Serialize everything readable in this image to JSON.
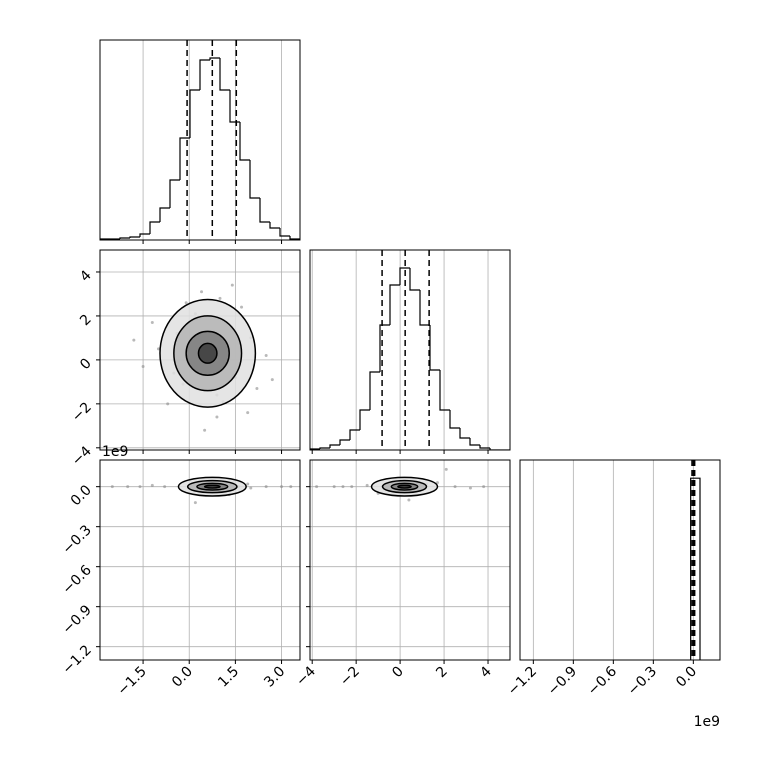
{
  "chart_data": {
    "type": "corner",
    "colors": {
      "line": "#000000",
      "points": "#8a8a8a",
      "grid": "#b0b0b0",
      "fills": [
        "#e0e0e0",
        "#b4b4b4",
        "#7c7c7c",
        "#3c3c3c"
      ]
    },
    "grid": true,
    "params": [
      {
        "lim": [
          -2.9,
          3.6
        ],
        "ticks": [
          {
            "value": -1.5,
            "label": "−1.5"
          },
          {
            "value": 0,
            "label": "0.0"
          },
          {
            "value": 1.5,
            "label": "1.5"
          },
          {
            "value": 3,
            "label": "3.0"
          }
        ],
        "quantiles": [
          -0.07,
          0.75,
          1.53
        ],
        "hist": {
          "bins": [
            -2.9,
            -2.575,
            -2.25,
            -1.925,
            -1.6,
            -1.275,
            -0.95,
            -0.625,
            -0.3,
            0.025,
            0.35,
            0.675,
            1.0,
            1.325,
            1.65,
            1.975,
            2.3,
            2.625,
            2.95,
            3.275,
            3.6
          ],
          "counts": [
            1,
            1,
            2,
            3,
            6,
            18,
            32,
            60,
            102,
            150,
            180,
            182,
            150,
            118,
            80,
            42,
            18,
            12,
            4,
            1
          ],
          "ylim": [
            0,
            200
          ]
        }
      },
      {
        "lim": [
          -4.1,
          5.0
        ],
        "ticks": [
          {
            "value": -4,
            "label": "−4"
          },
          {
            "value": -2,
            "label": "−2"
          },
          0,
          2,
          4
        ],
        "quantiles": [
          -0.82,
          0.23,
          1.32
        ],
        "hist": {
          "bins": [
            -4.1,
            -3.645,
            -3.19,
            -2.735,
            -2.28,
            -1.825,
            -1.37,
            -0.915,
            -0.46,
            -0.005,
            0.45,
            0.905,
            1.36,
            1.815,
            2.27,
            2.725,
            3.18,
            3.635,
            4.09,
            4.545,
            5.0
          ],
          "counts": [
            1,
            2,
            5,
            10,
            20,
            40,
            78,
            125,
            165,
            182,
            160,
            125,
            80,
            40,
            22,
            12,
            5,
            2,
            0,
            0
          ],
          "ylim": [
            0,
            200
          ]
        }
      },
      {
        "lim": [
          -1.3,
          0.2
        ],
        "ticks": [
          {
            "value": -1.2,
            "label": "−1.2"
          },
          {
            "value": -0.9,
            "label": "−0.9"
          },
          {
            "value": -0.6,
            "label": "−0.6"
          },
          {
            "value": -0.3,
            "label": "−0.3"
          },
          {
            "value": 0,
            "label": "0.0"
          }
        ],
        "offset_text": "1e9",
        "quantiles": [
          -0.01,
          0.0,
          0.01
        ],
        "hist": {
          "bins": [
            -0.02,
            0.05
          ],
          "counts": [
            1
          ],
          "ylim": [
            0,
            1.1
          ]
        }
      }
    ],
    "pairs": [
      {
        "points": {
          "x": [
            0.6,
            -0.4,
            1.5,
            0.2,
            1.1,
            -1.0,
            2.0,
            0.9,
            -0.2,
            1.7,
            0.4,
            -1.5,
            2.5,
            0.8,
            1.3,
            -0.7,
            0.0,
            2.2,
            0.5,
            1.0,
            -1.2,
            1.9,
            0.3,
            -0.5,
            2.7,
            0.7,
            1.4,
            -0.1,
            0.9,
            -1.8
          ],
          "y": [
            0.3,
            1.2,
            -0.8,
            2.1,
            -1.9,
            0.5,
            1.0,
            -2.6,
            -1.1,
            2.4,
            3.1,
            -0.3,
            0.2,
            -0.5,
            1.6,
            -2.0,
            0.8,
            -1.3,
            -3.2,
            2.8,
            1.7,
            -2.4,
            0.0,
            -0.6,
            -0.9,
            1.1,
            3.4,
            2.6,
            -1.6,
            0.9
          ]
        },
        "contours": [
          {
            "center": [
              0.6,
              0.3
            ],
            "radii": [
              1.55,
              2.45
            ]
          },
          {
            "center": [
              0.6,
              0.3
            ],
            "radii": [
              1.1,
              1.7
            ]
          },
          {
            "center": [
              0.6,
              0.3
            ],
            "radii": [
              0.7,
              1.0
            ]
          },
          {
            "center": [
              0.6,
              0.3
            ],
            "radii": [
              0.3,
              0.45
            ]
          }
        ]
      },
      {
        "points": {
          "x": [
            -2.5,
            -2.0,
            -1.6,
            -1.2,
            -0.8,
            0.0,
            0.5,
            1.0,
            1.6,
            2.0,
            2.5,
            3.0,
            3.3,
            1.3,
            0.2,
            1.9
          ],
          "y": [
            0.0,
            0.0,
            0.0,
            0.01,
            0.0,
            0.0,
            -0.02,
            0.03,
            0.0,
            -0.01,
            0.0,
            0.0,
            0.0,
            -0.06,
            -0.12,
            0.02
          ]
        },
        "contours": [
          {
            "center": [
              0.75,
              0.0
            ],
            "radii": [
              1.1,
              0.07
            ]
          },
          {
            "center": [
              0.75,
              0.0
            ],
            "radii": [
              0.8,
              0.045
            ]
          },
          {
            "center": [
              0.75,
              0.0
            ],
            "radii": [
              0.5,
              0.025
            ]
          },
          {
            "center": [
              0.75,
              0.0
            ],
            "radii": [
              0.25,
              0.01
            ]
          }
        ]
      },
      {
        "points": {
          "x": [
            -3.8,
            -3.0,
            -2.2,
            -1.5,
            -0.8,
            0.0,
            0.9,
            1.7,
            2.5,
            3.2,
            3.8,
            2.1,
            -1.0,
            1.2,
            0.4,
            -2.6
          ],
          "y": [
            0.0,
            0.0,
            0.0,
            0.01,
            0.0,
            0.0,
            -0.02,
            0.03,
            0.0,
            -0.01,
            0.0,
            0.13,
            -0.05,
            0.02,
            -0.1,
            0.0
          ]
        },
        "contours": [
          {
            "center": [
              0.2,
              0.0
            ],
            "radii": [
              1.5,
              0.07
            ]
          },
          {
            "center": [
              0.2,
              0.0
            ],
            "radii": [
              1.0,
              0.045
            ]
          },
          {
            "center": [
              0.2,
              0.0
            ],
            "radii": [
              0.6,
              0.025
            ]
          },
          {
            "center": [
              0.2,
              0.0
            ],
            "radii": [
              0.3,
              0.01
            ]
          }
        ]
      }
    ]
  }
}
